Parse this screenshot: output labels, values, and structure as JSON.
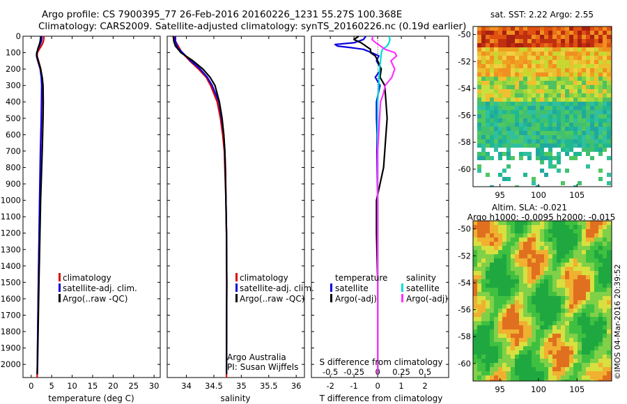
{
  "header": {
    "line1": "Argo profile: CS 7900395_77 26-Feb-2016 20160226_1231 55.27S 100.368E",
    "line2": "Climatology: CARS2009. Satellite-adjusted climatology: synTS_20160226.nc (0.19d earlier)"
  },
  "colors": {
    "climatology": "#e00000",
    "satellite": "#0a00e0",
    "argo": "#000000",
    "sal_satellite": "#00dcdc",
    "sal_argo": "#ff30ff"
  },
  "depth_ticks": [
    "0",
    "100",
    "200",
    "300",
    "400",
    "500",
    "600",
    "700",
    "800",
    "900",
    "1000",
    "1100",
    "1200",
    "1300",
    "1400",
    "1500",
    "1600",
    "1700",
    "1800",
    "1900",
    "2000"
  ],
  "chart_data": [
    {
      "type": "line",
      "name": "temperature-profile",
      "xlabel": "temperature (deg C)",
      "ylabel": "depth",
      "xlim": [
        -2,
        31.5
      ],
      "ylim": [
        2080,
        0
      ],
      "xticks": [
        "0",
        "5",
        "10",
        "15",
        "20",
        "25",
        "30"
      ],
      "legend": [
        "climatology",
        "satellite-adj. clim.",
        "Argo(..raw -QC)"
      ],
      "series": [
        {
          "name": "climatology",
          "depth": [
            0,
            10,
            30,
            50,
            70,
            100,
            120,
            150,
            200,
            250,
            300,
            400,
            500,
            700,
            1000,
            1500,
            2000,
            2080
          ],
          "values": [
            3.1,
            3.1,
            3.0,
            2.7,
            2.2,
            1.5,
            1.45,
            1.8,
            2.35,
            2.55,
            2.6,
            2.55,
            2.5,
            2.3,
            2.1,
            1.75,
            1.5,
            1.45
          ]
        },
        {
          "name": "satellite-adj. clim.",
          "depth": [
            0,
            10,
            30,
            50,
            70,
            100,
            120,
            150,
            200,
            250,
            300,
            400,
            500,
            700,
            1000,
            1500,
            2000,
            2060
          ],
          "values": [
            2.6,
            2.6,
            2.5,
            2.2,
            1.8,
            1.35,
            1.3,
            1.6,
            2.2,
            2.45,
            2.55,
            2.5,
            2.45,
            2.25,
            2.05,
            1.75,
            1.5,
            1.45
          ]
        },
        {
          "name": "Argo(..raw -QC)",
          "depth": [
            0,
            10,
            30,
            50,
            70,
            100,
            120,
            150,
            200,
            250,
            300,
            400,
            500,
            600,
            700,
            1000,
            1500,
            2000,
            2060
          ],
          "values": [
            2.3,
            2.3,
            2.2,
            2.0,
            1.7,
            1.4,
            1.35,
            1.7,
            2.3,
            2.7,
            2.9,
            2.95,
            2.9,
            2.8,
            2.7,
            2.3,
            1.9,
            1.55,
            1.5
          ]
        }
      ]
    },
    {
      "type": "line",
      "name": "salinity-profile",
      "xlabel": "salinity",
      "ylabel": "depth",
      "xlim": [
        33.65,
        36.15
      ],
      "ylim": [
        2080,
        0
      ],
      "xticks": [
        "34",
        "34.5",
        "35",
        "35.5",
        "36"
      ],
      "legend": [
        "climatology",
        "satellite-adj. clim.",
        "Argo(..raw -QC)"
      ],
      "annotation": [
        "Argo Australia",
        "PI: Susan Wijffels"
      ],
      "series": [
        {
          "name": "climatology",
          "depth": [
            0,
            30,
            60,
            100,
            150,
            200,
            250,
            300,
            400,
            500,
            600,
            700,
            800,
            1000,
            1200,
            1500,
            2000,
            2080
          ],
          "values": [
            33.78,
            33.8,
            33.85,
            33.92,
            34.06,
            34.22,
            34.36,
            34.44,
            34.56,
            34.62,
            34.66,
            34.69,
            34.7,
            34.72,
            34.73,
            34.735,
            34.73,
            34.73
          ]
        },
        {
          "name": "satellite-adj. clim.",
          "depth": [
            0,
            30,
            50,
            70,
            100,
            150,
            200,
            250,
            300,
            400,
            500,
            600,
            700,
            800,
            1000,
            1200,
            1500,
            2000,
            2060
          ],
          "values": [
            33.8,
            33.8,
            33.82,
            33.84,
            33.93,
            34.08,
            34.25,
            34.38,
            34.47,
            34.59,
            34.64,
            34.68,
            34.7,
            34.71,
            34.72,
            34.73,
            34.735,
            34.73,
            34.73
          ]
        },
        {
          "name": "Argo(..raw -QC)",
          "depth": [
            0,
            30,
            60,
            100,
            150,
            200,
            250,
            300,
            400,
            500,
            600,
            700,
            800,
            1000,
            1200,
            1500,
            2000,
            2060
          ],
          "values": [
            33.76,
            33.77,
            33.8,
            33.9,
            34.12,
            34.3,
            34.43,
            34.52,
            34.6,
            34.65,
            34.68,
            34.7,
            34.71,
            34.72,
            34.73,
            34.735,
            34.73,
            34.73
          ]
        }
      ]
    },
    {
      "type": "line",
      "name": "difference-profile",
      "xlabel": "T difference from climatology",
      "xlabel_top": "S difference from climatology",
      "ylabel": "depth",
      "xlim": [
        -2.8,
        3.0
      ],
      "ylim": [
        2080,
        0
      ],
      "xticks": [
        "-2",
        "-1",
        "0",
        "1",
        "2"
      ],
      "xticks_top": [
        "-0.5",
        "-0.25",
        "0",
        "0.25",
        "0.5"
      ],
      "legend": [
        "temperature",
        "satellite",
        "Argo(-adj)",
        "salinity",
        "satellite",
        "Argo(-adj)"
      ],
      "series": [
        {
          "name": "temperature satellite",
          "depth": [
            0,
            20,
            40,
            50,
            60,
            70,
            80,
            100,
            120,
            150,
            200,
            250,
            300,
            400,
            500,
            600,
            700,
            800,
            1000,
            1500,
            2000,
            2060
          ],
          "values": [
            -0.5,
            -0.6,
            -1.0,
            -1.8,
            -1.7,
            -1.1,
            -0.6,
            -0.25,
            0.05,
            -0.05,
            0.15,
            -0.1,
            0.1,
            -0.05,
            -0.05,
            -0.02,
            -0.03,
            -0.02,
            0.0,
            0.0,
            0.0,
            0.0
          ]
        },
        {
          "name": "temperature Argo(-adj)",
          "depth": [
            0,
            20,
            40,
            60,
            80,
            100,
            120,
            150,
            200,
            250,
            300,
            400,
            500,
            600,
            700,
            800,
            900,
            1000,
            1200,
            1500,
            2000,
            2060
          ],
          "values": [
            -0.8,
            -1.0,
            -0.7,
            -0.5,
            -0.3,
            -0.3,
            -0.1,
            0.0,
            0.15,
            0.1,
            0.3,
            0.35,
            0.4,
            0.35,
            0.3,
            0.25,
            0.1,
            -0.05,
            -0.05,
            0.0,
            0.0,
            0.0
          ]
        },
        {
          "name": "salinity satellite",
          "depth": [
            0,
            20,
            40,
            60,
            80,
            100,
            150,
            200,
            300,
            400,
            500,
            600,
            700,
            800,
            1000,
            1500,
            2000,
            2060
          ],
          "values": [
            0.12,
            0.13,
            0.12,
            0.1,
            0.05,
            0.04,
            0.03,
            0.02,
            0.01,
            0.0,
            0.0,
            0.0,
            0.0,
            0.0,
            0.0,
            0.0,
            0.0,
            0.0
          ]
        },
        {
          "name": "salinity Argo(-adj)",
          "depth": [
            0,
            20,
            40,
            60,
            80,
            100,
            120,
            150,
            200,
            250,
            300,
            350,
            400,
            500,
            600,
            700,
            800,
            1000,
            1500,
            2000,
            2060
          ],
          "values": [
            -0.05,
            -0.06,
            -0.02,
            0.03,
            0.08,
            0.18,
            0.2,
            0.14,
            0.18,
            0.15,
            0.08,
            0.06,
            0.03,
            0.02,
            0.01,
            0.0,
            0.0,
            0.0,
            0.0,
            0.0,
            0.0
          ]
        }
      ]
    },
    {
      "type": "heatmap",
      "name": "sst-map",
      "title": "sat. SST: 2.22 Argo: 2.55",
      "xlim": [
        91.5,
        109.5
      ],
      "ylim": [
        -61.3,
        -49.4
      ],
      "xticks": [
        "95",
        "100",
        "105"
      ],
      "yticks": [
        "-50",
        "-52",
        "-54",
        "-56",
        "-58",
        "-60"
      ]
    },
    {
      "type": "heatmap",
      "name": "sla-map",
      "title": "Altim. SLA: -0.021",
      "subtitle": "Argo h1000: -0.0095 h2000: -0.015",
      "xlim": [
        91.5,
        109.5
      ],
      "ylim": [
        -61.3,
        -49.4
      ],
      "xticks": [
        "95",
        "100",
        "105"
      ],
      "yticks": [
        "-50",
        "-52",
        "-54",
        "-56",
        "-58",
        "-60"
      ]
    }
  ],
  "timestamp": "©IMOS 04-Mar-2016 20:39:52"
}
